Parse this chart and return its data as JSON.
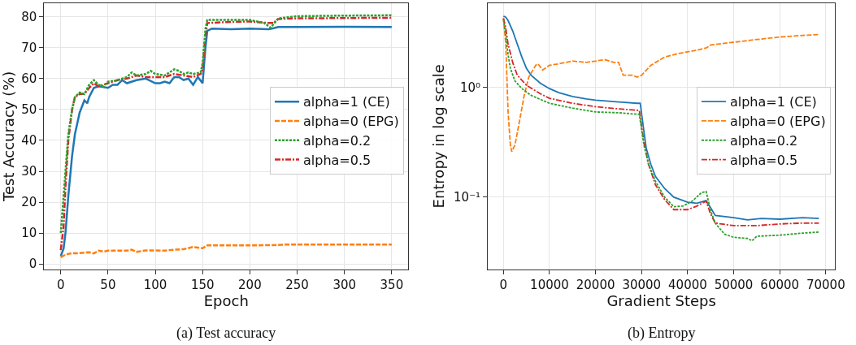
{
  "chart_data": [
    {
      "type": "line",
      "xlabel": "Epoch",
      "ylabel": "Test Accuracy (%)",
      "annotations": [
        "(a) Test accuracy"
      ],
      "xlim": [
        -17.5,
        367.5
      ],
      "ylim": [
        -1.7,
        84.4
      ],
      "xticks": [
        0,
        50,
        100,
        150,
        200,
        250,
        300,
        350
      ],
      "yticks": [
        0,
        10,
        20,
        30,
        40,
        50,
        60,
        70,
        80
      ],
      "grid": true,
      "legend": "right",
      "series": [
        {
          "name": "alpha=1 (CE)",
          "color": "#1f77b4",
          "line_style": "solid",
          "x": [
            0,
            3,
            5,
            8,
            12,
            15,
            20,
            25,
            28,
            30,
            35,
            40,
            50,
            55,
            60,
            65,
            70,
            80,
            90,
            100,
            105,
            110,
            115,
            120,
            125,
            130,
            135,
            140,
            145,
            150,
            153,
            155,
            160,
            180,
            200,
            220,
            225,
            230,
            250,
            300,
            350
          ],
          "values": [
            2.5,
            5,
            10,
            22,
            35,
            42,
            49,
            53,
            52,
            54,
            57,
            57.5,
            57,
            58,
            58,
            59.5,
            58.5,
            59.5,
            60,
            58.5,
            58.5,
            59,
            58.5,
            60.5,
            60.5,
            59.5,
            60,
            58,
            60.5,
            58.5,
            70,
            75.5,
            76.2,
            76,
            76.2,
            76,
            76.3,
            76.7,
            76.7,
            76.8,
            76.7
          ]
        },
        {
          "name": "alpha=0 (EPG)",
          "color": "#ff7f0e",
          "line_style": "dashed",
          "x": [
            0,
            5,
            10,
            20,
            30,
            35,
            40,
            45,
            50,
            70,
            75,
            80,
            90,
            100,
            110,
            120,
            130,
            140,
            145,
            150,
            155,
            200,
            225,
            240,
            300,
            350
          ],
          "values": [
            2.2,
            3,
            3.4,
            3.5,
            3.8,
            3.4,
            4.3,
            4,
            4.3,
            4.3,
            4.6,
            3.9,
            4.4,
            4.4,
            4.3,
            4.6,
            4.8,
            5.5,
            5.3,
            5.1,
            6,
            6,
            6.1,
            6.3,
            6.3,
            6.3
          ]
        },
        {
          "name": "alpha=0.2",
          "color": "#2ca02c",
          "line_style": "dotted",
          "x": [
            0,
            3,
            5,
            8,
            12,
            15,
            20,
            25,
            30,
            35,
            40,
            45,
            50,
            60,
            70,
            75,
            80,
            90,
            95,
            100,
            110,
            115,
            120,
            125,
            130,
            135,
            140,
            148,
            150,
            153,
            155,
            175,
            200,
            215,
            222,
            230,
            250,
            300,
            350
          ],
          "values": [
            10,
            22,
            30,
            42,
            50,
            54,
            55.5,
            55,
            58,
            59.5,
            58,
            57.5,
            59,
            59.5,
            60.5,
            62,
            61,
            61.5,
            62.5,
            61.5,
            61,
            62,
            63,
            62.5,
            61.5,
            62,
            61.5,
            62,
            65,
            76,
            79,
            79,
            79,
            78,
            76.5,
            79.5,
            80.2,
            80.4,
            80.5
          ]
        },
        {
          "name": "alpha=0.5",
          "color": "#d62728",
          "line_style": "dashdot",
          "x": [
            0,
            3,
            5,
            8,
            12,
            15,
            20,
            25,
            30,
            35,
            40,
            50,
            60,
            70,
            80,
            90,
            100,
            110,
            120,
            130,
            140,
            148,
            150,
            153,
            155,
            175,
            200,
            220,
            225,
            230,
            250,
            300,
            350
          ],
          "values": [
            4.5,
            12,
            25,
            40,
            50,
            54,
            55,
            55,
            57,
            58.5,
            57.5,
            58.5,
            59.5,
            60,
            61,
            60.5,
            60.5,
            60.5,
            61.5,
            61,
            60.5,
            61.5,
            63,
            74,
            78,
            78.3,
            78.5,
            78,
            78,
            79.3,
            79.5,
            79.6,
            79.7
          ]
        }
      ]
    },
    {
      "type": "line",
      "xlabel": "Gradient Steps",
      "ylabel": "Entropy in log scale",
      "annotations": [
        "(b) Entropy"
      ],
      "log": "y",
      "xlim": [
        -3400,
        72000
      ],
      "ylim": [
        0.022,
        5.9
      ],
      "xticks": [
        0,
        10000,
        20000,
        30000,
        40000,
        50000,
        60000,
        70000
      ],
      "yticks": [
        {
          "value": 0.1,
          "label": "10⁻¹"
        },
        {
          "value": 1,
          "label": "10⁰"
        }
      ],
      "grid": true,
      "legend": "right",
      "series": [
        {
          "name": "alpha=1 (CE)",
          "color": "#1f77b4",
          "line_style": "solid",
          "x": [
            0,
            500,
            1000,
            2000,
            3000,
            4000,
            5000,
            6000,
            8000,
            10000,
            12000,
            15000,
            18000,
            20000,
            25000,
            29000,
            29700,
            30500,
            31000,
            32000,
            33000,
            35000,
            37000,
            40000,
            42000,
            44000,
            45000,
            46000,
            50000,
            53000,
            56000,
            60000,
            65000,
            68500
          ],
          "values": [
            4.5,
            4.4,
            4.1,
            3.3,
            2.5,
            1.9,
            1.5,
            1.3,
            1.1,
            0.98,
            0.9,
            0.83,
            0.79,
            0.77,
            0.74,
            0.72,
            0.72,
            0.4,
            0.28,
            0.2,
            0.155,
            0.12,
            0.1,
            0.09,
            0.088,
            0.093,
            0.08,
            0.068,
            0.065,
            0.062,
            0.064,
            0.063,
            0.065,
            0.064
          ]
        },
        {
          "name": "alpha=0 (EPG)",
          "color": "#ff7f0e",
          "line_style": "dashed",
          "x": [
            0,
            500,
            1000,
            1500,
            1800,
            2500,
            3500,
            4500,
            5500,
            7000,
            7500,
            8500,
            10000,
            12000,
            15000,
            18000,
            22000,
            24000,
            25000,
            26000,
            28000,
            29000,
            30000,
            32000,
            35000,
            38000,
            42000,
            44000,
            45000,
            50000,
            55000,
            60000,
            65000,
            68500
          ],
          "values": [
            4.3,
            2.5,
            0.6,
            0.3,
            0.26,
            0.3,
            0.5,
            0.85,
            1.25,
            1.6,
            1.65,
            1.45,
            1.6,
            1.65,
            1.75,
            1.7,
            1.8,
            1.7,
            1.7,
            1.3,
            1.3,
            1.25,
            1.3,
            1.6,
            1.9,
            2.05,
            2.2,
            2.3,
            2.45,
            2.6,
            2.75,
            2.9,
            3.0,
            3.05
          ]
        },
        {
          "name": "alpha=0.2",
          "color": "#2ca02c",
          "line_style": "dotted",
          "x": [
            0,
            500,
            1000,
            1500,
            2500,
            4000,
            6000,
            10000,
            15000,
            20000,
            25000,
            29500,
            30500,
            31500,
            33000,
            35000,
            37000,
            39000,
            41000,
            43000,
            44000,
            45000,
            46000,
            48000,
            50000,
            53000,
            54000,
            55000,
            60000,
            65000,
            68500
          ],
          "values": [
            4.2,
            3.0,
            2.0,
            1.5,
            1.15,
            0.98,
            0.85,
            0.72,
            0.65,
            0.6,
            0.59,
            0.57,
            0.3,
            0.2,
            0.14,
            0.1,
            0.082,
            0.083,
            0.092,
            0.11,
            0.113,
            0.075,
            0.058,
            0.046,
            0.043,
            0.042,
            0.04,
            0.044,
            0.045,
            0.047,
            0.048
          ]
        },
        {
          "name": "alpha=0.5",
          "color": "#d62728",
          "line_style": "dashdot",
          "x": [
            0,
            500,
            1000,
            2000,
            3000,
            5000,
            8000,
            10000,
            15000,
            20000,
            25000,
            29500,
            30500,
            31500,
            33000,
            35000,
            37000,
            40000,
            42000,
            44000,
            45000,
            46000,
            50000,
            55000,
            60000,
            65000,
            68500
          ],
          "values": [
            4.3,
            3.5,
            2.5,
            1.7,
            1.3,
            1.05,
            0.88,
            0.8,
            0.72,
            0.67,
            0.64,
            0.62,
            0.32,
            0.2,
            0.13,
            0.095,
            0.077,
            0.077,
            0.083,
            0.092,
            0.07,
            0.058,
            0.055,
            0.055,
            0.057,
            0.058,
            0.058
          ]
        }
      ]
    }
  ]
}
